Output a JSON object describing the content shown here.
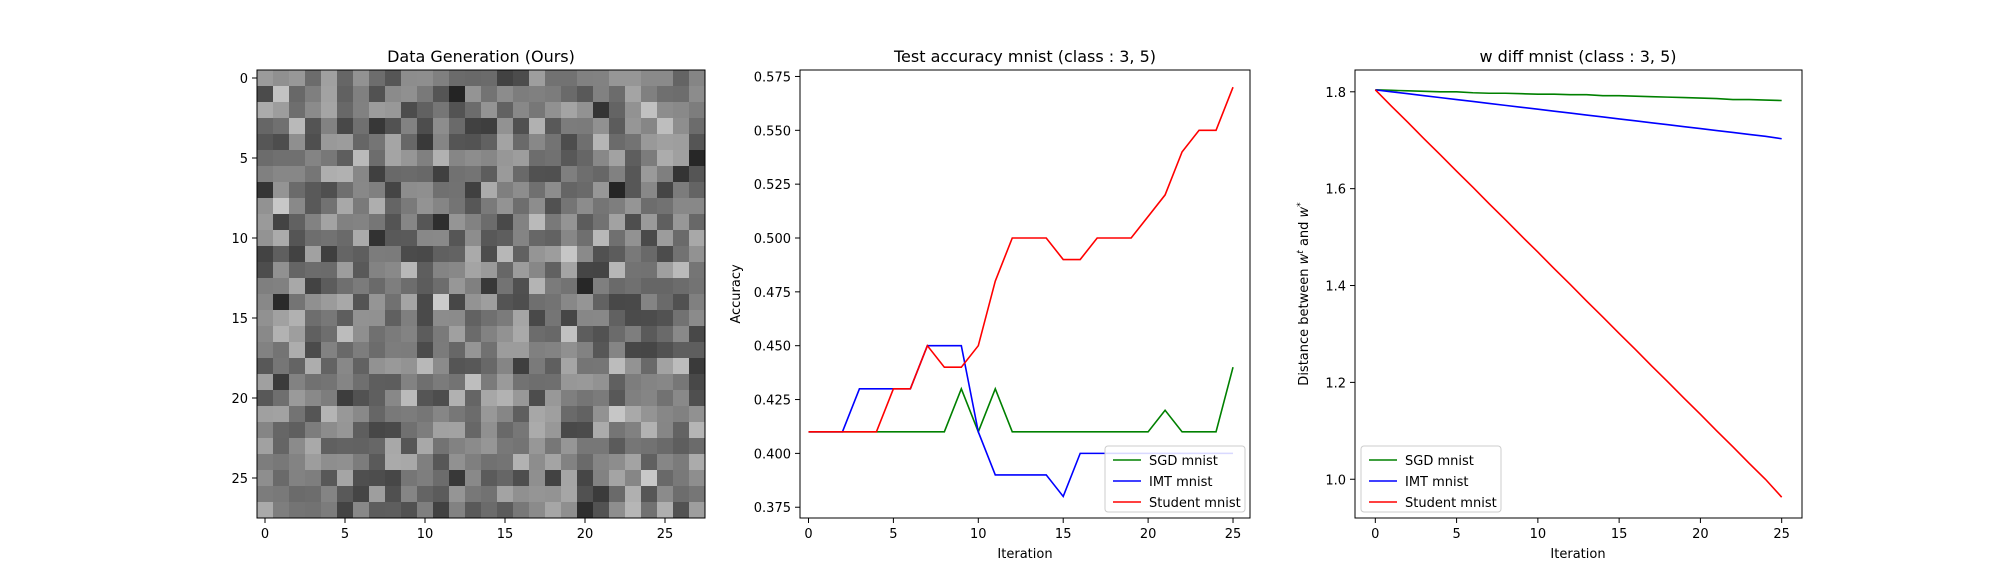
{
  "chart_data": [
    {
      "type": "heatmap",
      "title": "Data Generation (Ours)",
      "rows": 28,
      "cols": 28,
      "colormap": "gray",
      "x_ticks": [
        "0",
        "5",
        "10",
        "15",
        "20",
        "25"
      ],
      "y_ticks": [
        "0",
        "5",
        "10",
        "15",
        "20",
        "25"
      ]
    },
    {
      "type": "line",
      "title": "Test accuracy mnist (class : 3, 5)",
      "xlabel": "Iteration",
      "ylabel": "Accuracy",
      "xlim": [
        -0.5,
        26.0
      ],
      "ylim": [
        0.37,
        0.578
      ],
      "x_ticks": [
        "0",
        "5",
        "10",
        "15",
        "20",
        "25"
      ],
      "y_ticks": [
        "0.375",
        "0.400",
        "0.425",
        "0.450",
        "0.475",
        "0.500",
        "0.525",
        "0.550",
        "0.575"
      ],
      "legend": "lower-right",
      "x": [
        0,
        1,
        2,
        3,
        4,
        5,
        6,
        7,
        8,
        9,
        10,
        11,
        12,
        13,
        14,
        15,
        16,
        17,
        18,
        19,
        20,
        21,
        22,
        23,
        24,
        25
      ],
      "series": [
        {
          "name": "SGD mnist",
          "color": "#008000",
          "values": [
            0.41,
            0.41,
            0.41,
            0.41,
            0.41,
            0.41,
            0.41,
            0.41,
            0.41,
            0.43,
            0.41,
            0.43,
            0.41,
            0.41,
            0.41,
            0.41,
            0.41,
            0.41,
            0.41,
            0.41,
            0.41,
            0.42,
            0.41,
            0.41,
            0.41,
            0.44
          ]
        },
        {
          "name": "IMT mnist",
          "color": "#0000ff",
          "values": [
            0.41,
            0.41,
            0.41,
            0.43,
            0.43,
            0.43,
            0.43,
            0.45,
            0.45,
            0.45,
            0.41,
            0.39,
            0.39,
            0.39,
            0.39,
            0.38,
            0.4,
            0.4,
            0.4,
            0.4,
            0.4,
            0.4,
            0.4,
            0.4,
            0.4,
            0.4
          ]
        },
        {
          "name": "Student mnist",
          "color": "#ff0000",
          "values": [
            0.41,
            0.41,
            0.41,
            0.41,
            0.41,
            0.43,
            0.43,
            0.45,
            0.44,
            0.44,
            0.45,
            0.48,
            0.5,
            0.5,
            0.5,
            0.49,
            0.49,
            0.5,
            0.5,
            0.5,
            0.51,
            0.52,
            0.54,
            0.55,
            0.55,
            0.57
          ]
        }
      ]
    },
    {
      "type": "line",
      "title": "w diff mnist (class : 3, 5)",
      "xlabel": "Iteration",
      "ylabel": "Distance between w^t and w^*",
      "xlim": [
        -1.25,
        26.25
      ],
      "ylim": [
        0.92,
        1.845
      ],
      "x_ticks": [
        "0",
        "5",
        "10",
        "15",
        "20",
        "25"
      ],
      "y_ticks": [
        "1.0",
        "1.2",
        "1.4",
        "1.6",
        "1.8"
      ],
      "legend": "lower-left",
      "x": [
        0,
        1,
        2,
        3,
        4,
        5,
        6,
        7,
        8,
        9,
        10,
        11,
        12,
        13,
        14,
        15,
        16,
        17,
        18,
        19,
        20,
        21,
        22,
        23,
        24,
        25
      ],
      "series": [
        {
          "name": "SGD mnist",
          "color": "#008000",
          "values": [
            1.804,
            1.803,
            1.802,
            1.801,
            1.8,
            1.8,
            1.798,
            1.797,
            1.797,
            1.796,
            1.795,
            1.795,
            1.794,
            1.794,
            1.792,
            1.792,
            1.791,
            1.79,
            1.789,
            1.788,
            1.787,
            1.786,
            1.784,
            1.784,
            1.783,
            1.782
          ]
        },
        {
          "name": "IMT mnist",
          "color": "#0000ff",
          "values": [
            1.804,
            1.8,
            1.796,
            1.792,
            1.788,
            1.784,
            1.78,
            1.776,
            1.772,
            1.768,
            1.764,
            1.76,
            1.756,
            1.752,
            1.748,
            1.744,
            1.74,
            1.736,
            1.732,
            1.728,
            1.724,
            1.72,
            1.716,
            1.712,
            1.708,
            1.703
          ]
        },
        {
          "name": "Student mnist",
          "color": "#ff0000",
          "values": [
            1.804,
            1.77,
            1.737,
            1.703,
            1.67,
            1.636,
            1.603,
            1.569,
            1.536,
            1.502,
            1.469,
            1.435,
            1.402,
            1.368,
            1.335,
            1.301,
            1.268,
            1.234,
            1.201,
            1.167,
            1.134,
            1.1,
            1.067,
            1.033,
            1.0,
            0.963
          ]
        }
      ]
    }
  ]
}
